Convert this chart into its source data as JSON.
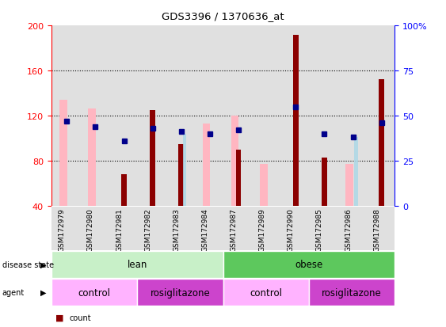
{
  "title": "GDS3396 / 1370636_at",
  "samples": [
    "GSM172979",
    "GSM172980",
    "GSM172981",
    "GSM172982",
    "GSM172983",
    "GSM172984",
    "GSM172987",
    "GSM172989",
    "GSM172990",
    "GSM172985",
    "GSM172986",
    "GSM172988"
  ],
  "count_values": [
    0,
    0,
    68,
    125,
    95,
    0,
    90,
    0,
    192,
    83,
    0,
    152
  ],
  "percentile_values": [
    47,
    44,
    36,
    43,
    41,
    40,
    42,
    0,
    55,
    40,
    38,
    46
  ],
  "absent_value_bars": [
    134,
    126,
    0,
    0,
    0,
    113,
    120,
    77,
    0,
    0,
    77,
    0
  ],
  "absent_rank_bars": [
    0,
    0,
    0,
    0,
    40,
    0,
    0,
    0,
    0,
    0,
    38,
    0
  ],
  "ylim_left": [
    40,
    200
  ],
  "ylim_right": [
    0,
    100
  ],
  "yticks_left": [
    40,
    80,
    120,
    160,
    200
  ],
  "yticks_right": [
    0,
    25,
    50,
    75,
    100
  ],
  "bar_bottom": 40,
  "dark_red": "#8B0000",
  "dark_blue": "#00008B",
  "light_pink": "#FFB6C1",
  "light_blue": "#ADD8E6",
  "lean_light_color": "#C8F0C8",
  "lean_dark_color": "#5DC85D",
  "control_light_color": "#FFB3FF",
  "rosiglitazone_color": "#CC44CC",
  "col_bg_color": "#C8C8C8"
}
